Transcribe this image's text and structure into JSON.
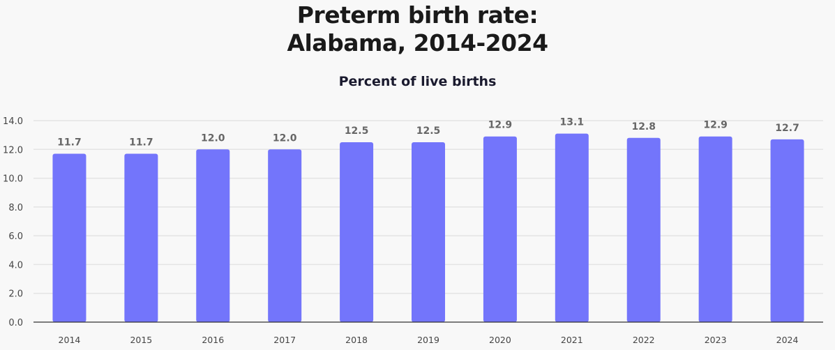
{
  "chart_data": {
    "type": "bar",
    "title_lines": [
      "Preterm birth rate:",
      "Alabama, 2014-2024"
    ],
    "subtitle": "Percent of live births",
    "xlabel": "",
    "ylabel": "",
    "categories": [
      "2014",
      "2015",
      "2016",
      "2017",
      "2018",
      "2019",
      "2020",
      "2021",
      "2022",
      "2023",
      "2024"
    ],
    "values": [
      11.7,
      11.7,
      12.0,
      12.0,
      12.5,
      12.5,
      12.9,
      13.1,
      12.8,
      12.9,
      12.7
    ],
    "data_labels": [
      "11.7",
      "11.7",
      "12.0",
      "12.0",
      "12.5",
      "12.5",
      "12.9",
      "13.1",
      "12.8",
      "12.9",
      "12.7"
    ],
    "ylim": [
      0,
      14
    ],
    "yticks": [
      "0.0",
      "2.0",
      "4.0",
      "6.0",
      "8.0",
      "10.0",
      "12.0",
      "14.0"
    ],
    "grid": true,
    "legend": "none",
    "colors": {
      "bar": "#7375fb",
      "label": "#666666",
      "grid": "#e4e4e4",
      "axis": "#333333"
    }
  }
}
